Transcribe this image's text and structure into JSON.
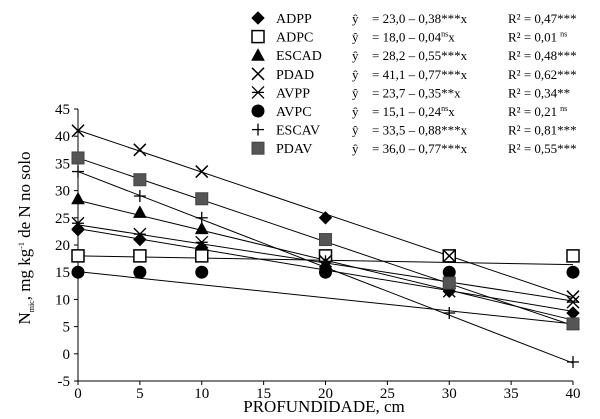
{
  "chart_data": {
    "type": "scatter",
    "xlabel": "PROFUNDIDADE, cm",
    "ylabel_main": "N",
    "ylabel_sub": "mic",
    "ylabel_rest_1": ", mg kg",
    "ylabel_sup": "-1",
    "ylabel_rest_2": " de N no solo",
    "xlim": [
      0,
      40
    ],
    "ylim": [
      -5,
      45
    ],
    "x_ticks": [
      "0",
      "5",
      "10",
      "15",
      "20",
      "25",
      "30",
      "35",
      "40"
    ],
    "y_ticks": [
      "-5",
      "0",
      "5",
      "10",
      "15",
      "20",
      "25",
      "30",
      "35",
      "40",
      "45"
    ],
    "x_tick_values": [
      0,
      5,
      10,
      15,
      20,
      25,
      30,
      35,
      40
    ],
    "y_tick_values": [
      -5,
      0,
      5,
      10,
      15,
      20,
      25,
      30,
      35,
      40,
      45
    ],
    "yhat_symbol": "ŷ",
    "series": [
      {
        "name": "ADPP",
        "marker": "diamond",
        "fill": "#000000",
        "eq_pre": "= 23,0 – 0,38",
        "eq_stars": "***",
        "eq_ns": "",
        "eq_post": "x",
        "r2": "R² = 0,47",
        "r2_stars": "***",
        "r2_ns": "",
        "intercept": 23.0,
        "slope": -0.38,
        "points": [
          [
            0,
            22.8
          ],
          [
            5,
            21.0
          ],
          [
            10,
            19.5
          ],
          [
            20,
            25.0
          ],
          [
            30,
            11.5
          ],
          [
            40,
            7.5
          ]
        ]
      },
      {
        "name": "ADPC",
        "marker": "square-open",
        "fill": "#ffffff",
        "eq_pre": "= 18,0 – 0,04",
        "eq_stars": "",
        "eq_ns": "ns",
        "eq_post": "x",
        "r2": "R² = 0,01",
        "r2_stars": "",
        "r2_ns": "ns",
        "intercept": 18.0,
        "slope": -0.04,
        "points": [
          [
            0,
            18.0
          ],
          [
            5,
            18.0
          ],
          [
            10,
            18.0
          ],
          [
            20,
            18.0
          ],
          [
            30,
            18.0
          ],
          [
            40,
            18.0
          ]
        ]
      },
      {
        "name": "ESCAD",
        "marker": "triangle",
        "fill": "#000000",
        "eq_pre": "= 28,2 – 0,55",
        "eq_stars": "***",
        "eq_ns": "",
        "eq_post": "x",
        "r2": "R² = 0,48",
        "r2_stars": "***",
        "r2_ns": "",
        "intercept": 28.2,
        "slope": -0.55,
        "points": [
          [
            0,
            28.5
          ],
          [
            5,
            26.0
          ],
          [
            10,
            23.0
          ],
          [
            20,
            16.5
          ],
          [
            30,
            13.0
          ],
          [
            40,
            5.5
          ]
        ]
      },
      {
        "name": "PDAD",
        "marker": "x",
        "fill": "#000000",
        "eq_pre": "= 41,1 – 0,77",
        "eq_stars": "***",
        "eq_ns": "",
        "eq_post": "x",
        "r2": "R² = 0,62",
        "r2_stars": "***",
        "r2_ns": "",
        "intercept": 41.1,
        "slope": -0.77,
        "points": [
          [
            0,
            41.0
          ],
          [
            5,
            37.5
          ],
          [
            10,
            33.5
          ],
          [
            20,
            17.0
          ],
          [
            30,
            18.0
          ],
          [
            40,
            10.5
          ]
        ]
      },
      {
        "name": "AVPP",
        "marker": "star",
        "fill": "#000000",
        "eq_pre": "= 23,7 – 0,35",
        "eq_stars": "**",
        "eq_ns": "",
        "eq_post": "x",
        "r2": "R² = 0,34",
        "r2_stars": "**",
        "r2_ns": "",
        "intercept": 23.7,
        "slope": -0.35,
        "points": [
          [
            0,
            24.0
          ],
          [
            5,
            22.0
          ],
          [
            10,
            20.5
          ],
          [
            20,
            16.0
          ],
          [
            30,
            11.5
          ],
          [
            40,
            9.5
          ]
        ]
      },
      {
        "name": "AVPC",
        "marker": "circle",
        "fill": "#000000",
        "eq_pre": "= 15,1 – 0,24",
        "eq_stars": "",
        "eq_ns": "ns",
        "eq_post": "x",
        "r2": "R² = 0,21",
        "r2_stars": "",
        "r2_ns": "ns",
        "intercept": 15.1,
        "slope": -0.24,
        "points": [
          [
            0,
            15.0
          ],
          [
            5,
            15.0
          ],
          [
            10,
            15.0
          ],
          [
            20,
            15.0
          ],
          [
            30,
            15.0
          ],
          [
            40,
            15.0
          ]
        ]
      },
      {
        "name": "ESCAV",
        "marker": "plus",
        "fill": "#000000",
        "eq_pre": "= 33,5 – 0,88",
        "eq_stars": "***",
        "eq_ns": "",
        "eq_post": "x",
        "r2": "R² = 0,81",
        "r2_stars": "***",
        "r2_ns": "",
        "intercept": 33.5,
        "slope": -0.88,
        "points": [
          [
            0,
            33.5
          ],
          [
            5,
            29.0
          ],
          [
            10,
            25.0
          ],
          [
            20,
            17.0
          ],
          [
            30,
            7.5
          ],
          [
            40,
            -1.5
          ]
        ]
      },
      {
        "name": "PDAV",
        "marker": "square",
        "fill": "#555555",
        "eq_pre": "= 36,0 – 0,77",
        "eq_stars": "***",
        "eq_ns": "",
        "eq_post": "x",
        "r2": "R² = 0,55",
        "r2_stars": "***",
        "r2_ns": "",
        "intercept": 36.0,
        "slope": -0.77,
        "points": [
          [
            0,
            36.0
          ],
          [
            5,
            32.0
          ],
          [
            10,
            28.5
          ],
          [
            20,
            21.0
          ],
          [
            30,
            13.0
          ],
          [
            40,
            5.5
          ]
        ]
      }
    ]
  }
}
